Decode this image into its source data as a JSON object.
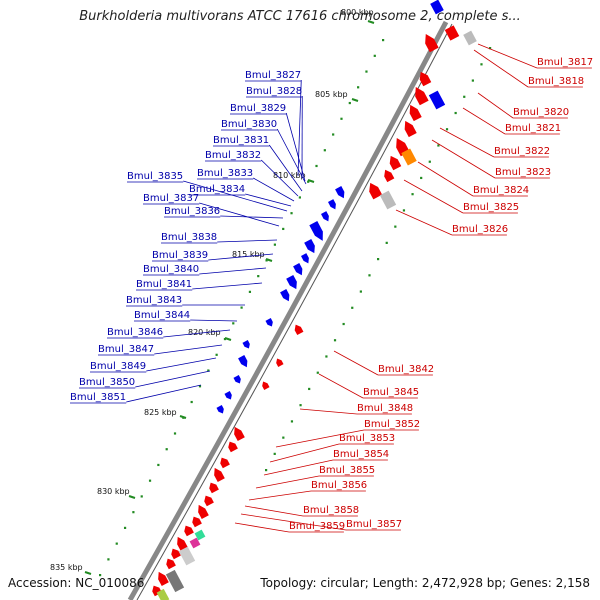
{
  "title": "Burkholderia multivorans ATCC 17616 chromosome 2, complete s...",
  "footer": {
    "accession": "Accession: NC_010086",
    "topology": "Topology: circular; Length: 2,472,928 bp; Genes: 2,158"
  },
  "colors": {
    "forward_gene": "#0000ee",
    "reverse_gene": "#ee0000",
    "orange_gene": "#ff8800",
    "grey_gene": "#bbbbbb",
    "backbone": "#888888",
    "tick": "#228b22",
    "left_label": "#0000aa",
    "right_label": "#cc0000"
  },
  "kbp_ticks": [
    "800 kbp",
    "805 kbp",
    "810 kbp",
    "815 kbp",
    "820 kbp",
    "825 kbp",
    "830 kbp",
    "835 kbp"
  ],
  "left_labels": [
    "Bmul_3827",
    "Bmul_3828",
    "Bmul_3829",
    "Bmul_3830",
    "Bmul_3831",
    "Bmul_3832",
    "Bmul_3833",
    "Bmul_3834",
    "Bmul_3835",
    "Bmul_3836",
    "Bmul_3837",
    "Bmul_3838",
    "Bmul_3839",
    "Bmul_3840",
    "Bmul_3841",
    "Bmul_3843",
    "Bmul_3844",
    "Bmul_3846",
    "Bmul_3847",
    "Bmul_3849",
    "Bmul_3850",
    "Bmul_3851"
  ],
  "right_labels": [
    "Bmul_3817",
    "Bmul_3818",
    "Bmul_3820",
    "Bmul_3821",
    "Bmul_3822",
    "Bmul_3823",
    "Bmul_3824",
    "Bmul_3825",
    "Bmul_3826",
    "Bmul_3842",
    "Bmul_3845",
    "Bmul_3848",
    "Bmul_3852",
    "Bmul_3853",
    "Bmul_3854",
    "Bmul_3855",
    "Bmul_3856",
    "Bmul_3858",
    "Bmul_3857",
    "Bmul_3859"
  ]
}
